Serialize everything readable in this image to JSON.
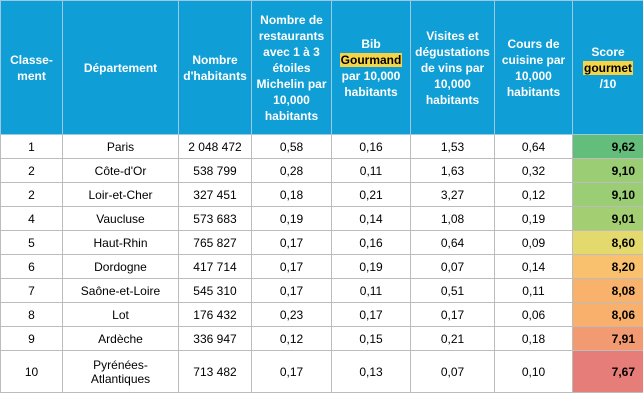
{
  "header": {
    "rank": "Classe-ment",
    "department": "Département",
    "population": "Nombre d'habitants",
    "michelin": "Nombre de restaurants avec 1 à 3 étoiles Michelin par 10,000 habitants",
    "bib_pre": "Bib",
    "bib_hl": "Gourmand",
    "bib_post": "par 10,000 habitants",
    "wine": "Visites et dégustations de vins par 10,000 habitants",
    "cooking": "Cours de cuisine par 10,000 habitants",
    "score_pre": "Score",
    "score_hl": "gourmet",
    "score_post": "/10"
  },
  "rows": [
    {
      "rank": "1",
      "department": "Paris",
      "population": "2 048 472",
      "michelin": "0,58",
      "bib": "0,16",
      "wine": "1,53",
      "cooking": "0,64",
      "score": "9,62",
      "score_color": "#63be7b"
    },
    {
      "rank": "2",
      "department": "Côte-d'Or",
      "population": "538 799",
      "michelin": "0,28",
      "bib": "0,11",
      "wine": "1,63",
      "cooking": "0,32",
      "score": "9,10",
      "score_color": "#9acd74"
    },
    {
      "rank": "2",
      "department": "Loir-et-Cher",
      "population": "327 451",
      "michelin": "0,18",
      "bib": "0,21",
      "wine": "3,27",
      "cooking": "0,12",
      "score": "9,10",
      "score_color": "#9acd74"
    },
    {
      "rank": "4",
      "department": "Vaucluse",
      "population": "573 683",
      "michelin": "0,19",
      "bib": "0,14",
      "wine": "1,08",
      "cooking": "0,19",
      "score": "9,01",
      "score_color": "#a3cf72"
    },
    {
      "rank": "5",
      "department": "Haut-Rhin",
      "population": "765 827",
      "michelin": "0,17",
      "bib": "0,16",
      "wine": "0,64",
      "cooking": "0,09",
      "score": "8,60",
      "score_color": "#e3d96c"
    },
    {
      "rank": "6",
      "department": "Dordogne",
      "population": "417 714",
      "michelin": "0,17",
      "bib": "0,19",
      "wine": "0,07",
      "cooking": "0,14",
      "score": "8,20",
      "score_color": "#f9c06e"
    },
    {
      "rank": "7",
      "department": "Saône-et-Loire",
      "population": "545 310",
      "michelin": "0,17",
      "bib": "0,11",
      "wine": "0,51",
      "cooking": "0,11",
      "score": "8,08",
      "score_color": "#f8b26c"
    },
    {
      "rank": "8",
      "department": "Lot",
      "population": "176 432",
      "michelin": "0,23",
      "bib": "0,17",
      "wine": "0,17",
      "cooking": "0,06",
      "score": "8,06",
      "score_color": "#f8b06c"
    },
    {
      "rank": "9",
      "department": "Ardèche",
      "population": "336 947",
      "michelin": "0,12",
      "bib": "0,15",
      "wine": "0,21",
      "cooking": "0,18",
      "score": "7,91",
      "score_color": "#f29a72"
    },
    {
      "rank": "10",
      "department": "Pyrénées-Atlantiques",
      "population": "713 482",
      "michelin": "0,17",
      "bib": "0,13",
      "wine": "0,07",
      "cooking": "0,10",
      "score": "7,67",
      "score_color": "#e67d79"
    }
  ]
}
